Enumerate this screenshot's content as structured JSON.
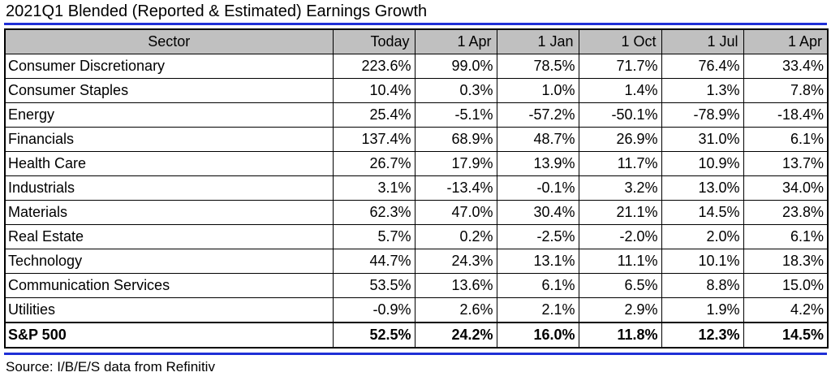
{
  "title": "2021Q1 Blended (Reported & Estimated) Earnings Growth",
  "source": "Source: I/B/E/S data from Refinitiv",
  "colors": {
    "rule": "#1f2fd6",
    "header_bg": "#c0c0c0"
  },
  "table": {
    "headers": [
      "Sector",
      "Today",
      "1 Apr",
      "1 Jan",
      "1 Oct",
      "1 Jul",
      "1 Apr"
    ],
    "rows": [
      [
        "Consumer Discretionary",
        "223.6%",
        "99.0%",
        "78.5%",
        "71.7%",
        "76.4%",
        "33.4%"
      ],
      [
        "Consumer Staples",
        "10.4%",
        "0.3%",
        "1.0%",
        "1.4%",
        "1.3%",
        "7.8%"
      ],
      [
        "Energy",
        "25.4%",
        "-5.1%",
        "-57.2%",
        "-50.1%",
        "-78.9%",
        "-18.4%"
      ],
      [
        "Financials",
        "137.4%",
        "68.9%",
        "48.7%",
        "26.9%",
        "31.0%",
        "6.1%"
      ],
      [
        "Health Care",
        "26.7%",
        "17.9%",
        "13.9%",
        "11.7%",
        "10.9%",
        "13.7%"
      ],
      [
        "Industrials",
        "3.1%",
        "-13.4%",
        "-0.1%",
        "3.2%",
        "13.0%",
        "34.0%"
      ],
      [
        "Materials",
        "62.3%",
        "47.0%",
        "30.4%",
        "21.1%",
        "14.5%",
        "23.8%"
      ],
      [
        "Real Estate",
        "5.7%",
        "0.2%",
        "-2.5%",
        "-2.0%",
        "2.0%",
        "6.1%"
      ],
      [
        "Technology",
        "44.7%",
        "24.3%",
        "13.1%",
        "11.1%",
        "10.1%",
        "18.3%"
      ],
      [
        "Communication Services",
        "53.5%",
        "13.6%",
        "6.1%",
        "6.5%",
        "8.8%",
        "15.0%"
      ],
      [
        "Utilities",
        "-0.9%",
        "2.6%",
        "2.1%",
        "2.9%",
        "1.9%",
        "4.2%"
      ]
    ],
    "total": [
      "S&P 500",
      "52.5%",
      "24.2%",
      "16.0%",
      "11.8%",
      "12.3%",
      "14.5%"
    ]
  }
}
